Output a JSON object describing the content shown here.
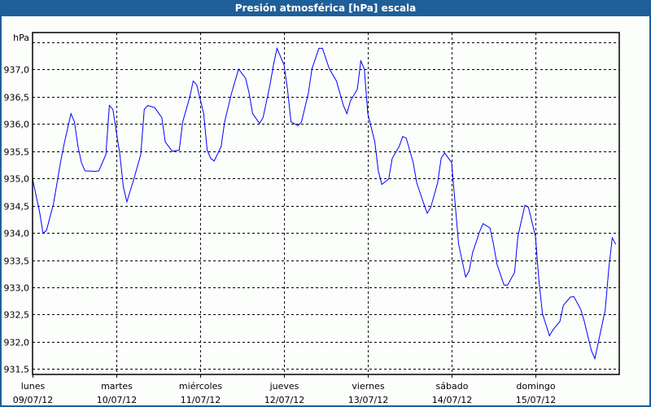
{
  "window": {
    "title": "Presión atmosférica [hPa] escala"
  },
  "colors": {
    "titlebar": "#1f5f99",
    "line": "#0000ff",
    "grid": "#000000",
    "background": "#fcfefc"
  },
  "chart_data": {
    "type": "line",
    "title": "Presión atmosférica [hPa] escala",
    "ylabel": "hPa",
    "ylim": [
      931.4,
      937.68
    ],
    "xlim": [
      "2012-07-09 00:00",
      "2012-07-16 00:00"
    ],
    "grid": true,
    "yticks": [
      931.5,
      932.0,
      932.5,
      933.0,
      933.5,
      934.0,
      934.5,
      935.0,
      935.5,
      936.0,
      936.5,
      937.0,
      937.5
    ],
    "ytick_labels": [
      "931,5",
      "932,0",
      "932,5",
      "933,0",
      "933,5",
      "934,0",
      "934,5",
      "935,0",
      "935,5",
      "936,0",
      "936,5",
      "937,0",
      ""
    ],
    "xticks": [
      {
        "date": "2012-07-09 00:00",
        "day": "lunes",
        "label": "09/07/12"
      },
      {
        "date": "2012-07-10 00:00",
        "day": "martes",
        "label": "10/07/12"
      },
      {
        "date": "2012-07-11 00:00",
        "day": "miércoles",
        "label": "11/07/12"
      },
      {
        "date": "2012-07-12 00:00",
        "day": "jueves",
        "label": "12/07/12"
      },
      {
        "date": "2012-07-13 00:00",
        "day": "viernes",
        "label": "13/07/12"
      },
      {
        "date": "2012-07-14 00:00",
        "day": "sábado",
        "label": "14/07/12"
      },
      {
        "date": "2012-07-15 00:00",
        "day": "domingo",
        "label": "15/07/12"
      }
    ],
    "series": [
      {
        "color": "#0000ff",
        "points": [
          [
            "2012-07-09 00:00",
            934.99
          ],
          [
            "2012-07-09 02:00",
            934.39
          ],
          [
            "2012-07-09 03:00",
            933.99
          ],
          [
            "2012-07-09 04:00",
            934.05
          ],
          [
            "2012-07-09 06:00",
            934.54
          ],
          [
            "2012-07-09 08:00",
            935.29
          ],
          [
            "2012-07-09 09:00",
            935.62
          ],
          [
            "2012-07-09 11:00",
            936.19
          ],
          [
            "2012-07-09 12:00",
            936.04
          ],
          [
            "2012-07-09 13:00",
            935.59
          ],
          [
            "2012-07-09 14:00",
            935.29
          ],
          [
            "2012-07-09 15:00",
            935.14
          ],
          [
            "2012-07-09 18:00",
            935.13
          ],
          [
            "2012-07-09 19:00",
            935.14
          ],
          [
            "2012-07-09 21:00",
            935.44
          ],
          [
            "2012-07-09 22:00",
            936.34
          ],
          [
            "2012-07-09 23:00",
            936.27
          ],
          [
            "2012-07-10 01:00",
            935.44
          ],
          [
            "2012-07-10 02:00",
            934.84
          ],
          [
            "2012-07-10 03:00",
            934.57
          ],
          [
            "2012-07-10 05:00",
            934.99
          ],
          [
            "2012-07-10 07:00",
            935.44
          ],
          [
            "2012-07-10 08:00",
            936.27
          ],
          [
            "2012-07-10 09:00",
            936.34
          ],
          [
            "2012-07-10 11:00",
            936.3
          ],
          [
            "2012-07-10 13:00",
            936.12
          ],
          [
            "2012-07-10 14:00",
            935.67
          ],
          [
            "2012-07-10 16:00",
            935.5
          ],
          [
            "2012-07-10 18:00",
            935.52
          ],
          [
            "2012-07-10 19:00",
            936.04
          ],
          [
            "2012-07-10 21:00",
            936.49
          ],
          [
            "2012-07-10 22:00",
            936.79
          ],
          [
            "2012-07-10 23:00",
            936.72
          ],
          [
            "2012-07-11 01:00",
            936.19
          ],
          [
            "2012-07-11 02:00",
            935.52
          ],
          [
            "2012-07-11 03:00",
            935.37
          ],
          [
            "2012-07-11 04:00",
            935.32
          ],
          [
            "2012-07-11 06:00",
            935.59
          ],
          [
            "2012-07-11 07:00",
            936.04
          ],
          [
            "2012-07-11 09:00",
            936.57
          ],
          [
            "2012-07-11 11:00",
            937.01
          ],
          [
            "2012-07-11 13:00",
            936.84
          ],
          [
            "2012-07-11 14:00",
            936.57
          ],
          [
            "2012-07-11 15:00",
            936.19
          ],
          [
            "2012-07-11 17:00",
            936.01
          ],
          [
            "2012-07-11 18:00",
            936.12
          ],
          [
            "2012-07-11 20:00",
            936.72
          ],
          [
            "2012-07-11 21:00",
            937.09
          ],
          [
            "2012-07-11 22:00",
            937.39
          ],
          [
            "2012-07-12 00:00",
            937.09
          ],
          [
            "2012-07-12 01:00",
            936.64
          ],
          [
            "2012-07-12 02:00",
            936.04
          ],
          [
            "2012-07-12 04:00",
            935.97
          ],
          [
            "2012-07-12 05:00",
            936.04
          ],
          [
            "2012-07-12 07:00",
            936.57
          ],
          [
            "2012-07-12 08:00",
            937.01
          ],
          [
            "2012-07-12 10:00",
            937.39
          ],
          [
            "2012-07-12 11:00",
            937.39
          ],
          [
            "2012-07-12 13:00",
            937.01
          ],
          [
            "2012-07-12 15:00",
            936.79
          ],
          [
            "2012-07-12 17:00",
            936.34
          ],
          [
            "2012-07-12 18:00",
            936.19
          ],
          [
            "2012-07-12 19:00",
            936.42
          ],
          [
            "2012-07-12 21:00",
            936.64
          ],
          [
            "2012-07-12 22:00",
            937.16
          ],
          [
            "2012-07-12 23:00",
            937.01
          ],
          [
            "2012-07-13 00:00",
            936.19
          ],
          [
            "2012-07-13 02:00",
            935.67
          ],
          [
            "2012-07-13 03:00",
            935.14
          ],
          [
            "2012-07-13 04:00",
            934.89
          ],
          [
            "2012-07-13 06:00",
            934.99
          ],
          [
            "2012-07-13 07:00",
            935.37
          ],
          [
            "2012-07-13 09:00",
            935.59
          ],
          [
            "2012-07-13 10:00",
            935.77
          ],
          [
            "2012-07-13 11:00",
            935.74
          ],
          [
            "2012-07-13 13:00",
            935.29
          ],
          [
            "2012-07-13 14:00",
            934.92
          ],
          [
            "2012-07-13 16:00",
            934.54
          ],
          [
            "2012-07-13 17:00",
            934.36
          ],
          [
            "2012-07-13 18:00",
            934.47
          ],
          [
            "2012-07-13 20:00",
            934.92
          ],
          [
            "2012-07-13 21:00",
            935.37
          ],
          [
            "2012-07-13 22:00",
            935.47
          ],
          [
            "2012-07-14 00:00",
            935.29
          ],
          [
            "2012-07-14 01:00",
            934.54
          ],
          [
            "2012-07-14 02:00",
            933.79
          ],
          [
            "2012-07-14 04:00",
            933.19
          ],
          [
            "2012-07-14 05:00",
            933.3
          ],
          [
            "2012-07-14 06:00",
            933.64
          ],
          [
            "2012-07-14 08:00",
            934.02
          ],
          [
            "2012-07-14 09:00",
            934.17
          ],
          [
            "2012-07-14 11:00",
            934.09
          ],
          [
            "2012-07-14 12:00",
            933.79
          ],
          [
            "2012-07-14 13:00",
            933.42
          ],
          [
            "2012-07-14 15:00",
            933.04
          ],
          [
            "2012-07-14 16:00",
            933.04
          ],
          [
            "2012-07-14 18:00",
            933.27
          ],
          [
            "2012-07-14 19:00",
            933.94
          ],
          [
            "2012-07-14 21:00",
            934.51
          ],
          [
            "2012-07-14 22:00",
            934.47
          ],
          [
            "2012-07-15 00:00",
            933.94
          ],
          [
            "2012-07-15 01:00",
            933.12
          ],
          [
            "2012-07-15 02:00",
            932.52
          ],
          [
            "2012-07-15 04:00",
            932.11
          ],
          [
            "2012-07-15 05:00",
            932.22
          ],
          [
            "2012-07-15 07:00",
            932.37
          ],
          [
            "2012-07-15 08:00",
            932.67
          ],
          [
            "2012-07-15 10:00",
            932.82
          ],
          [
            "2012-07-15 11:00",
            932.83
          ],
          [
            "2012-07-15 13:00",
            932.59
          ],
          [
            "2012-07-15 14:00",
            932.37
          ],
          [
            "2012-07-15 16:00",
            931.84
          ],
          [
            "2012-07-15 17:00",
            931.69
          ],
          [
            "2012-07-15 18:00",
            931.99
          ],
          [
            "2012-07-15 20:00",
            932.59
          ],
          [
            "2012-07-15 21:00",
            933.34
          ],
          [
            "2012-07-15 22:00",
            933.91
          ],
          [
            "2012-07-15 23:00",
            933.79
          ]
        ]
      }
    ]
  }
}
